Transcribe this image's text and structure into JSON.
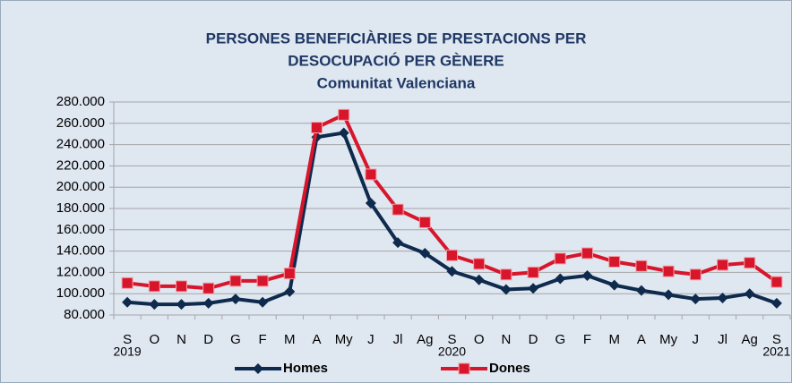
{
  "chart_data": {
    "type": "line",
    "title": [
      "PERSONES BENEFICIÀRIES DE PRESTACIONS PER",
      "DESOCUPACIÓ PER GÈNERE"
    ],
    "subtitle": "Comunitat Valenciana",
    "categories": [
      "S",
      "O",
      "N",
      "D",
      "G",
      "F",
      "M",
      "A",
      "My",
      "J",
      "Jl",
      "Ag",
      "S",
      "O",
      "N",
      "D",
      "G",
      "F",
      "M",
      "A",
      "My",
      "J",
      "Jl",
      "Ag",
      "S"
    ],
    "x_year_labels": [
      "2019",
      null,
      null,
      null,
      null,
      null,
      null,
      null,
      null,
      null,
      null,
      null,
      "2020",
      null,
      null,
      null,
      null,
      null,
      null,
      null,
      null,
      null,
      null,
      null,
      "2021"
    ],
    "series": [
      {
        "name": "Homes",
        "color": "#0e2a4c",
        "marker": "diamond",
        "values": [
          92000,
          90000,
          90000,
          91000,
          95000,
          92000,
          102000,
          247000,
          251000,
          185000,
          148000,
          138000,
          121000,
          113000,
          104000,
          105000,
          114000,
          117000,
          108000,
          103000,
          99000,
          95000,
          96000,
          100000,
          91000
        ]
      },
      {
        "name": "Dones",
        "color": "#d7152b",
        "marker": "square",
        "values": [
          110000,
          107000,
          107000,
          105000,
          112000,
          112000,
          119000,
          256000,
          268000,
          212000,
          179000,
          167000,
          136000,
          128000,
          118000,
          120000,
          133000,
          138000,
          130000,
          126000,
          121000,
          118000,
          127000,
          129000,
          111000
        ]
      }
    ],
    "ylim": [
      80000,
      280000
    ],
    "yticks": [
      {
        "value": 80000,
        "label": "80.000"
      },
      {
        "value": 100000,
        "label": "100.000"
      },
      {
        "value": 120000,
        "label": "120.000"
      },
      {
        "value": 140000,
        "label": "140.000"
      },
      {
        "value": 160000,
        "label": "160.000"
      },
      {
        "value": 180000,
        "label": "180.000"
      },
      {
        "value": 200000,
        "label": "200.000"
      },
      {
        "value": 220000,
        "label": "220.000"
      },
      {
        "value": 240000,
        "label": "240.000"
      },
      {
        "value": 260000,
        "label": "260.000"
      },
      {
        "value": 280000,
        "label": "280.000"
      }
    ],
    "grid": true,
    "legend": "bottom"
  }
}
